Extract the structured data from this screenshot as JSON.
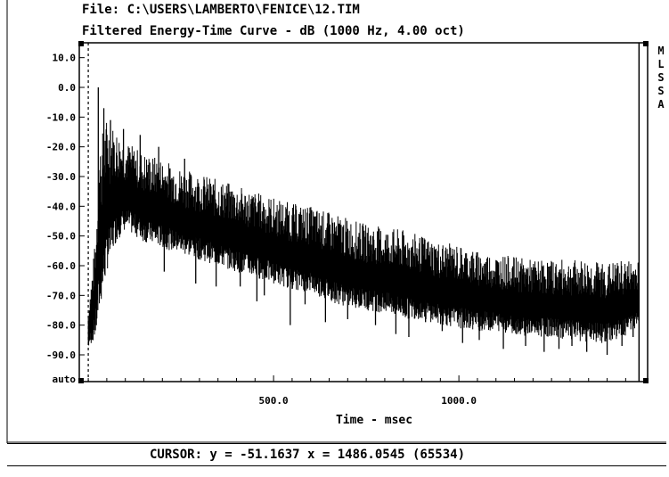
{
  "header": {
    "file_line": "File: C:\\USERS\\LAMBERTO\\FENICE\\12.TIM",
    "title_line": "Filtered Energy-Time Curve - dB (1000 Hz, 4.00 oct)"
  },
  "side_menu": [
    "M",
    "L",
    "S",
    "S",
    "A"
  ],
  "status": {
    "cursor_readout": "CURSOR: y = -51.1637 x = 1486.0545 (65534)"
  },
  "chart_data": {
    "type": "line",
    "title": "Filtered Energy-Time Curve - dB (1000 Hz, 4.00 oct)",
    "xlabel": "Time - msec",
    "ylabel": "",
    "xlim": [
      -5,
      1490
    ],
    "ylim": [
      -99,
      15
    ],
    "x_ticks": [
      500,
      1000
    ],
    "x_tick_labels": [
      "500.0",
      "1000.0"
    ],
    "y_ticks": [
      10,
      0,
      -10,
      -20,
      -30,
      -40,
      -50,
      -60,
      -70,
      -80,
      -90
    ],
    "y_tick_labels": [
      "10.0",
      "0.0",
      "-10.0",
      "-20.0",
      "-30.0",
      "-40.0",
      "-50.0",
      "-60.0",
      "-70.0",
      "-80.0",
      "-90.0"
    ],
    "y_bottom_label": "auto",
    "grid": false,
    "color": "#000000",
    "series": [
      {
        "x": [
          0,
          20,
          30,
          50,
          75,
          100,
          150,
          200,
          250,
          300,
          350,
          400,
          450,
          500,
          550,
          600,
          650,
          700,
          750,
          800,
          850,
          900,
          950,
          1000,
          1050,
          1100,
          1150,
          1200,
          1250,
          1300,
          1350,
          1400,
          1450,
          1486
        ],
        "upper": [
          -74,
          -50,
          -18,
          -10,
          -14,
          -18,
          -22,
          -24,
          -27,
          -29,
          -31,
          -33,
          -35,
          -37,
          -39,
          -40,
          -42,
          -44,
          -46,
          -47,
          -48,
          -50,
          -52,
          -53,
          -55,
          -56,
          -57,
          -58,
          -58,
          -58,
          -58,
          -59,
          -58,
          -58
        ],
        "lower": [
          -88,
          -84,
          -76,
          -62,
          -52,
          -48,
          -52,
          -54,
          -56,
          -58,
          -60,
          -62,
          -64,
          -66,
          -68,
          -69,
          -72,
          -74,
          -75,
          -76,
          -78,
          -78,
          -80,
          -81,
          -82,
          -82,
          -83,
          -84,
          -84,
          -85,
          -86,
          -86,
          -84,
          -80
        ],
        "peaks": [
          [
            27,
            0
          ],
          [
            42,
            -7
          ],
          [
            60,
            -11
          ],
          [
            95,
            -14
          ],
          [
            140,
            -16
          ],
          [
            190,
            -20
          ],
          [
            260,
            -24
          ],
          [
            205,
            -62
          ],
          [
            290,
            -66
          ],
          [
            345,
            -67
          ],
          [
            410,
            -67
          ],
          [
            455,
            -72
          ],
          [
            475,
            -70
          ],
          [
            545,
            -80
          ],
          [
            585,
            -73
          ],
          [
            640,
            -79
          ],
          [
            700,
            -78
          ],
          [
            775,
            -80
          ],
          [
            830,
            -83
          ],
          [
            865,
            -84
          ],
          [
            910,
            -79
          ],
          [
            955,
            -82
          ],
          [
            1010,
            -86
          ],
          [
            1055,
            -85
          ],
          [
            1080,
            -80
          ],
          [
            1120,
            -88
          ],
          [
            1180,
            -87
          ],
          [
            1230,
            -89
          ],
          [
            1270,
            -88
          ],
          [
            1305,
            -87
          ],
          [
            1345,
            -89
          ],
          [
            1400,
            -90
          ],
          [
            1440,
            -87
          ],
          [
            1470,
            -84
          ]
        ]
      }
    ],
    "cursor": {
      "x": 1486.0545,
      "y": -51.1637
    }
  }
}
